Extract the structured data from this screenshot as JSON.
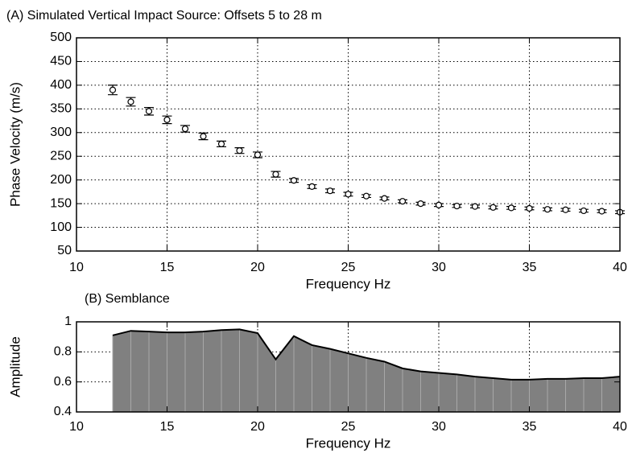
{
  "chart_data": [
    {
      "type": "scatter",
      "title": "(A) Simulated Vertical Impact Source: Offsets 5 to 28 m",
      "x_label": "Frequency Hz",
      "y_label": "Phase Velocity (m/s)",
      "x": [
        12,
        13,
        14,
        15,
        16,
        17,
        18,
        19,
        20,
        21,
        22,
        23,
        24,
        25,
        26,
        27,
        28,
        29,
        30,
        31,
        32,
        33,
        34,
        35,
        36,
        37,
        38,
        39,
        40
      ],
      "values": [
        390,
        365,
        345,
        327,
        308,
        292,
        276,
        262,
        253,
        212,
        199,
        186,
        177,
        170,
        166,
        161,
        155,
        150,
        147,
        145,
        144,
        142,
        141,
        140,
        138,
        137,
        135,
        134,
        132
      ],
      "errors": [
        10,
        9,
        8,
        8,
        7,
        7,
        6,
        6,
        6,
        6,
        4,
        4,
        4,
        4,
        3,
        3,
        3,
        3,
        3,
        3,
        3,
        3,
        3,
        3,
        3,
        3,
        3,
        3,
        3
      ],
      "color": "#000000",
      "xlim": [
        10,
        40
      ],
      "xticks": [
        10,
        15,
        20,
        25,
        30,
        35,
        40
      ],
      "ylim": [
        50,
        500
      ],
      "yticks": [
        50,
        100,
        150,
        200,
        250,
        300,
        350,
        400,
        450,
        500
      ],
      "grid": true
    },
    {
      "type": "area",
      "title": "(B) Semblance",
      "x_label": "Frequency Hz",
      "y_label": "Amplitude",
      "x": [
        12,
        13,
        14,
        15,
        16,
        17,
        18,
        19,
        20,
        21,
        22,
        23,
        24,
        25,
        26,
        27,
        28,
        29,
        30,
        31,
        32,
        33,
        34,
        35,
        36,
        37,
        38,
        39,
        40
      ],
      "values": [
        0.91,
        0.94,
        0.935,
        0.93,
        0.93,
        0.935,
        0.945,
        0.95,
        0.925,
        0.75,
        0.905,
        0.845,
        0.82,
        0.79,
        0.76,
        0.735,
        0.69,
        0.67,
        0.66,
        0.65,
        0.635,
        0.625,
        0.615,
        0.615,
        0.62,
        0.62,
        0.625,
        0.625,
        0.635
      ],
      "color": "#808080",
      "xlim": [
        10,
        40
      ],
      "xticks": [
        10,
        15,
        20,
        25,
        30,
        35,
        40
      ],
      "ylim": [
        0.4,
        1
      ],
      "yticks": [
        0.4,
        0.6,
        0.8,
        1
      ],
      "grid": true
    }
  ]
}
